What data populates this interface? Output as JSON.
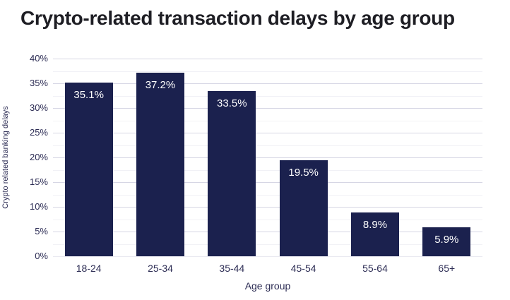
{
  "title": "Crypto-related transaction delays by age group",
  "colors": {
    "bar": "#1b214e",
    "bar_label": "#ffffff",
    "title_text": "#1e1e24",
    "axis_text": "#2c2c54",
    "grid_major": "#d6d6e4",
    "grid_minor": "#f1f1f6",
    "background": "#ffffff"
  },
  "chart_data": {
    "type": "bar",
    "title": "Crypto-related transaction delays by age group",
    "categories": [
      "18-24",
      "25-34",
      "35-44",
      "45-54",
      "55-64",
      "65+"
    ],
    "values": [
      35.1,
      37.2,
      33.5,
      19.5,
      8.9,
      5.9
    ],
    "bar_labels": [
      "35.1%",
      "37.2%",
      "33.5%",
      "19.5%",
      "8.9%",
      "5.9%"
    ],
    "xlabel": "Age group",
    "ylabel": "Crypto related banking delays",
    "ylim": [
      0,
      40
    ],
    "yticks": [
      0,
      5,
      10,
      15,
      20,
      25,
      30,
      35,
      40
    ],
    "ytick_labels": [
      "0%",
      "5%",
      "10%",
      "15%",
      "20%",
      "25%",
      "30%",
      "35%",
      "40%"
    ],
    "minor_tick_step": 2.5,
    "grid": "horizontal",
    "legend": "none"
  }
}
